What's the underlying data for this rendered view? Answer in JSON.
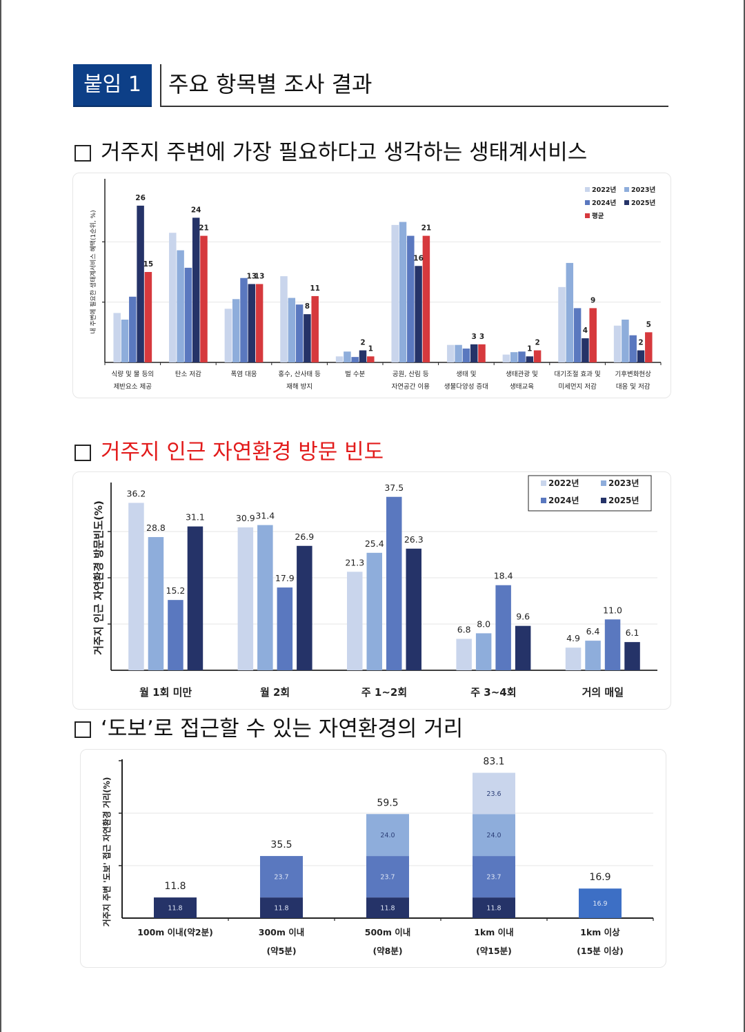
{
  "header": {
    "tag": "붙임 1",
    "title": "주요 항목별 조사 결과"
  },
  "sections": [
    {
      "title": "거주지 주변에 가장 필요하다고 생각하는 생태계서비스",
      "highlight": false
    },
    {
      "title": "거주지 인근 자연환경 방문 빈도",
      "highlight": true
    },
    {
      "title": "‘도보’로 접근할 수 있는 자연환경의 거리",
      "highlight": false
    }
  ],
  "chart_data": [
    {
      "type": "bar",
      "ylabel": "내 주변에 필요한 생태계서비스 혜택(1순위, %)",
      "ylim": [
        0,
        30
      ],
      "categories": [
        [
          "식량 및 물 등의",
          "제반요소 제공"
        ],
        [
          "탄소 저감"
        ],
        [
          "폭염 대응"
        ],
        [
          "홍수, 산사태 등",
          "재해 방지"
        ],
        [
          "벌 수분"
        ],
        [
          "공원, 산림 등",
          "자연공간 이용"
        ],
        [
          "생태 및",
          "생물다양성 증대"
        ],
        [
          "생태관광 및",
          "생태교육"
        ],
        [
          "대기조절 효과 및",
          "미세먼지 저감"
        ],
        [
          "기후변화현상",
          "대응 및 저감"
        ]
      ],
      "series": [
        {
          "name": "2022년",
          "color": "#c9d5ec",
          "values": [
            8.2,
            21.5,
            8.9,
            14.3,
            1.0,
            22.8,
            2.9,
            1.3,
            12.5,
            6.1
          ]
        },
        {
          "name": "2023년",
          "color": "#8eaddb",
          "values": [
            7.1,
            18.6,
            10.5,
            10.7,
            1.8,
            23.3,
            2.9,
            1.7,
            16.5,
            7.1
          ]
        },
        {
          "name": "2024년",
          "color": "#5a78bf",
          "values": [
            10.9,
            15.7,
            14.0,
            9.6,
            0.9,
            21.0,
            2.3,
            1.8,
            9.0,
            4.5
          ]
        },
        {
          "name": "2025년",
          "color": "#253368",
          "values": [
            26,
            24,
            13,
            8,
            2,
            16,
            3,
            1,
            4,
            2
          ]
        },
        {
          "name": "평균",
          "color": "#d6393d",
          "values": [
            15,
            21,
            13,
            11,
            1,
            21,
            3,
            2,
            9,
            5
          ]
        }
      ],
      "data_labels": [
        {
          "series": 3,
          "category": 0,
          "text": "26"
        },
        {
          "series": 4,
          "category": 0,
          "text": "15"
        },
        {
          "series": 3,
          "category": 1,
          "text": "24"
        },
        {
          "series": 4,
          "category": 1,
          "text": "21"
        },
        {
          "series": 3,
          "category": 2,
          "text": "13"
        },
        {
          "series": 4,
          "category": 2,
          "text": "13"
        },
        {
          "series": 3,
          "category": 3,
          "text": "8"
        },
        {
          "series": 4,
          "category": 3,
          "text": "11"
        },
        {
          "series": 3,
          "category": 4,
          "text": "2"
        },
        {
          "series": 4,
          "category": 4,
          "text": "1"
        },
        {
          "series": 4,
          "category": 5,
          "text": "21"
        },
        {
          "series": 3,
          "category": 5,
          "text": "16"
        },
        {
          "series": 3,
          "category": 6,
          "text": "3"
        },
        {
          "series": 4,
          "category": 6,
          "text": "3"
        },
        {
          "series": 3,
          "category": 7,
          "text": "1"
        },
        {
          "series": 4,
          "category": 7,
          "text": "2"
        },
        {
          "series": 4,
          "category": 8,
          "text": "9"
        },
        {
          "series": 3,
          "category": 8,
          "text": "4"
        },
        {
          "series": 4,
          "category": 9,
          "text": "5"
        },
        {
          "series": 3,
          "category": 9,
          "text": "2"
        }
      ],
      "legend": "top-right",
      "grid": true
    },
    {
      "type": "bar",
      "ylabel": "거주지 인근 자연환경 방문빈도(%)",
      "ylim": [
        0,
        40
      ],
      "categories": [
        "월 1회 미만",
        "월 2회",
        "주 1~2회",
        "주 3~4회",
        "거의 매일"
      ],
      "series": [
        {
          "name": "2022년",
          "color": "#c9d5ec",
          "values": [
            36.2,
            30.9,
            21.3,
            6.8,
            4.9
          ],
          "labels": [
            "36.2",
            "30.9",
            "21.3",
            "6.8",
            "4.9"
          ]
        },
        {
          "name": "2023년",
          "color": "#8eaddb",
          "values": [
            28.8,
            31.4,
            25.4,
            8.0,
            6.4
          ],
          "labels": [
            "28.8",
            "31.4",
            "25.4",
            "8.0",
            "6.4"
          ]
        },
        {
          "name": "2024년",
          "color": "#5a78bf",
          "values": [
            15.2,
            17.9,
            37.5,
            18.4,
            11.0
          ],
          "labels": [
            "15.2",
            "17.9",
            "37.5",
            "18.4",
            "11.0"
          ]
        },
        {
          "name": "2025년",
          "color": "#253368",
          "values": [
            31.1,
            26.9,
            26.3,
            9.6,
            6.1
          ],
          "labels": [
            "31.1",
            "26.9",
            "26.3",
            "9.6",
            "6.1"
          ]
        }
      ],
      "legend": "top-right",
      "grid": true
    },
    {
      "type": "stacked_bar",
      "ylabel": "거주지 주변 '도보' 접근 자연환경 거리(%)",
      "ylim": [
        0,
        90
      ],
      "categories": [
        [
          "100m 이내(약2분)"
        ],
        [
          "300m 이내",
          "(약5분)"
        ],
        [
          "500m 이내",
          "(약8분)"
        ],
        [
          "1km 이내",
          "(약15분)"
        ],
        [
          "1km 이상",
          "(15분 이상)"
        ]
      ],
      "totals": [
        "11.8",
        "35.5",
        "59.5",
        "83.1",
        "16.9"
      ],
      "series": [
        {
          "name": "100m 이내",
          "color": "#253368",
          "values": [
            11.8,
            11.8,
            11.8,
            11.8,
            0
          ],
          "labels": [
            "11.8",
            "11.8",
            "11.8",
            "11.8",
            ""
          ]
        },
        {
          "name": "300m 이내",
          "color": "#5a78bf",
          "values": [
            0,
            23.7,
            23.7,
            23.7,
            0
          ],
          "labels": [
            "",
            "23.7",
            "23.7",
            "23.7",
            ""
          ]
        },
        {
          "name": "500m 이내",
          "color": "#8eaddb",
          "values": [
            0,
            0,
            24.0,
            24.0,
            0
          ],
          "labels": [
            "",
            "",
            "24.0",
            "24.0",
            ""
          ]
        },
        {
          "name": "1km 이내",
          "color": "#c9d5ec",
          "values": [
            0,
            0,
            0,
            23.6,
            0
          ],
          "labels": [
            "",
            "",
            "",
            "23.6",
            ""
          ]
        },
        {
          "name": "1km 이상",
          "color": "#3d6fc5",
          "values": [
            0,
            0,
            0,
            0,
            16.9
          ],
          "labels": [
            "",
            "",
            "",
            "",
            "16.9"
          ]
        }
      ],
      "grid": true
    }
  ]
}
